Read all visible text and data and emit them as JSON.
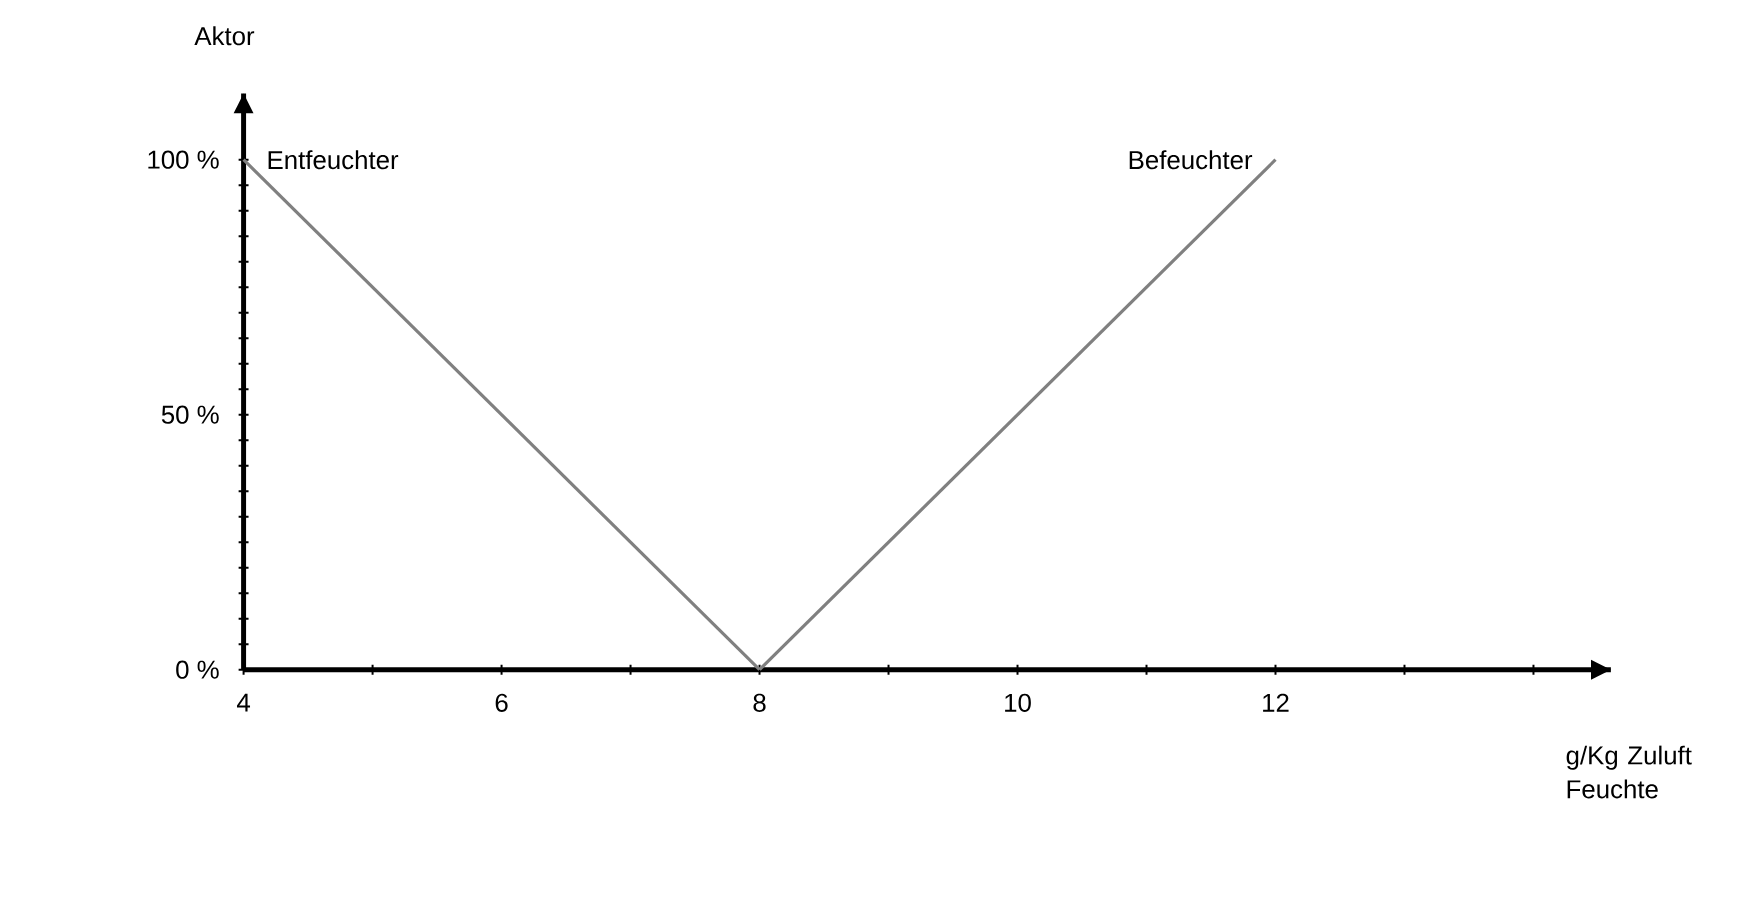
{
  "chart_data": {
    "type": "line",
    "xlabel": "g/Kg Zuluft Feuchte",
    "ylabel": "Aktor",
    "series": [
      {
        "name": "Entfeuchter",
        "color": "#808080",
        "x": [
          4,
          8
        ],
        "values": [
          100,
          0
        ]
      },
      {
        "name": "Befeuchter",
        "color": "#808080",
        "x": [
          8,
          12
        ],
        "values": [
          0,
          100
        ]
      }
    ],
    "xlim": [
      4,
      14.6
    ],
    "ylim": [
      0,
      113
    ],
    "xticks": [
      4,
      {
        "value": 5,
        "label": null
      },
      6,
      {
        "value": 7,
        "label": null
      },
      8,
      {
        "value": 9,
        "label": null
      },
      10,
      {
        "value": 11,
        "label": null
      },
      12,
      {
        "value": 13,
        "label": null
      },
      {
        "value": 14,
        "label": null
      }
    ],
    "yticks": [
      {
        "value": 0,
        "label": "0 %"
      },
      {
        "value": 5,
        "label": null
      },
      {
        "value": 10,
        "label": null
      },
      {
        "value": 15,
        "label": null
      },
      {
        "value": 20,
        "label": null
      },
      {
        "value": 25,
        "label": null
      },
      {
        "value": 30,
        "label": null
      },
      {
        "value": 35,
        "label": null
      },
      {
        "value": 40,
        "label": null
      },
      {
        "value": 45,
        "label": null
      },
      {
        "value": 50,
        "label": "50 %"
      },
      {
        "value": 55,
        "label": null
      },
      {
        "value": 60,
        "label": null
      },
      {
        "value": 65,
        "label": null
      },
      {
        "value": 70,
        "label": null
      },
      {
        "value": 75,
        "label": null
      },
      {
        "value": 80,
        "label": null
      },
      {
        "value": 85,
        "label": null
      },
      {
        "value": 90,
        "label": null
      },
      {
        "value": 95,
        "label": null
      },
      {
        "value": 100,
        "label": "100 %"
      }
    ],
    "grid": false,
    "legend": false,
    "marker": "none",
    "line_style": "solid"
  }
}
